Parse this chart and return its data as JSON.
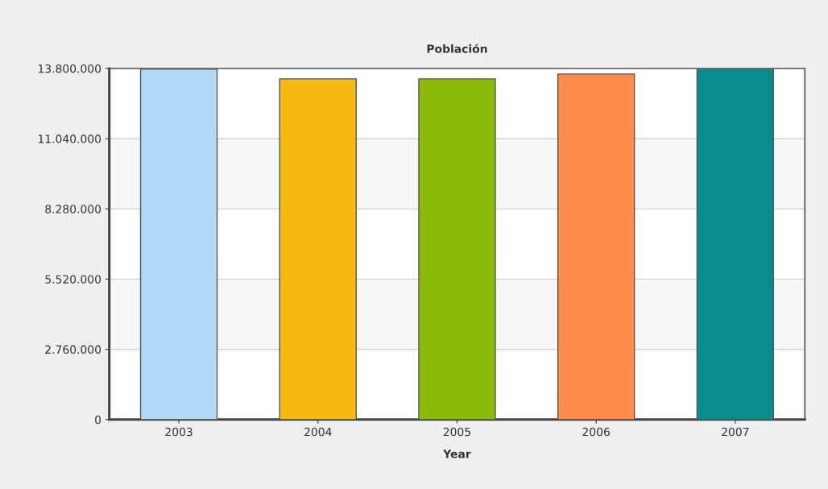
{
  "chart_data": {
    "type": "bar",
    "title": "Población",
    "xlabel": "Year",
    "categories": [
      "2003",
      "2004",
      "2005",
      "2006",
      "2007"
    ],
    "values": [
      13770000,
      13390000,
      13390000,
      13580000,
      13800000
    ],
    "colors": [
      "#b3d9f7",
      "#f5bb14",
      "#8cba0a",
      "#ff8c4a",
      "#0a8c8c"
    ],
    "ylim": [
      0,
      13800000
    ],
    "yticks": [
      {
        "value": 0,
        "label": "0"
      },
      {
        "value": 2760000,
        "label": "2.760.000"
      },
      {
        "value": 5520000,
        "label": "5.520.000"
      },
      {
        "value": 8280000,
        "label": "8.280.000"
      },
      {
        "value": 11040000,
        "label": "11.040.000"
      },
      {
        "value": 13800000,
        "label": "13.800.000"
      }
    ],
    "grid": "y",
    "legend": false
  }
}
